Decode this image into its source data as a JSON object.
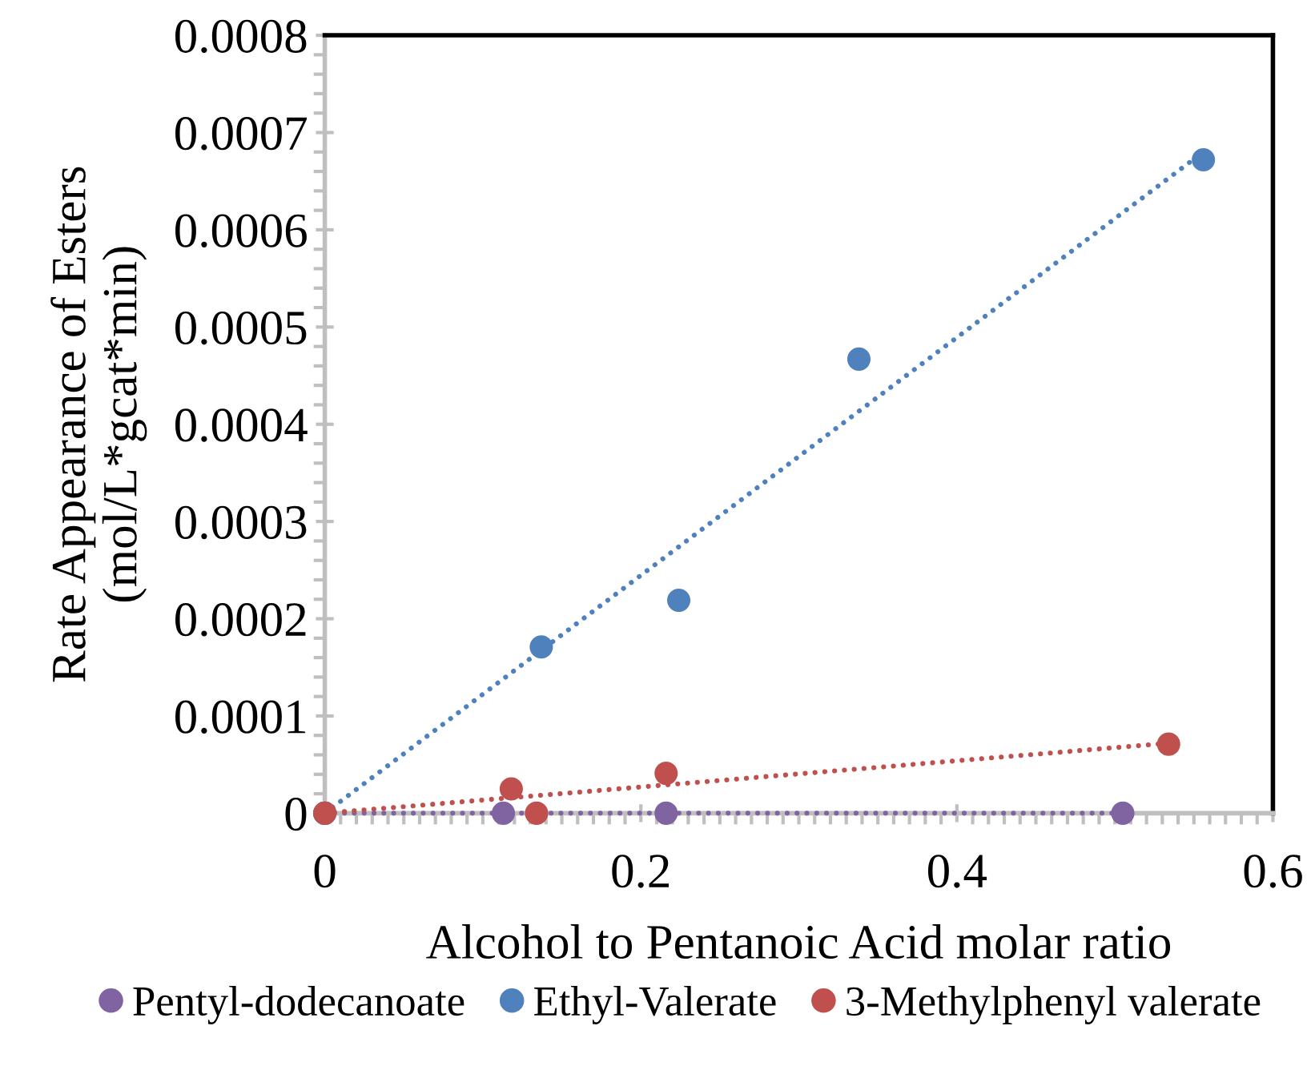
{
  "chart_data": {
    "type": "scatter",
    "xlabel": "Alcohol to Pentanoic Acid molar ratio",
    "ylabel": "Rate Appearance of Esters\n(mol/L*gcat*min)",
    "xlim": [
      0,
      0.6
    ],
    "xticks": [
      0,
      0.2,
      0.4,
      0.6
    ],
    "ylim": [
      0,
      0.0008
    ],
    "yticks": [
      0,
      0.0001,
      0.0002,
      0.0003,
      0.0004,
      0.0005,
      0.0006,
      0.0007,
      0.0008
    ],
    "grid": false,
    "legend": "bottom",
    "marker": "circle",
    "series": [
      {
        "name": "Pentyl-dodecanoate",
        "color": "#8064a2",
        "x": [
          0,
          0.113,
          0.216,
          0.505
        ],
        "values": [
          0,
          0,
          0,
          0
        ]
      },
      {
        "name": "Ethyl-Valerate",
        "color": "#4f81bd",
        "x": [
          0,
          0.137,
          0.224,
          0.338,
          0.556
        ],
        "values": [
          0,
          0.000171,
          0.000219,
          0.000467,
          0.000672
        ]
      },
      {
        "name": "3-Methylphenyl valerate",
        "color": "#c0504d",
        "x": [
          0,
          0.118,
          0.134,
          0.216,
          0.534
        ],
        "values": [
          0,
          2.5e-05,
          0,
          4.1e-05,
          7.1e-05
        ]
      },
      {
        "type": "line",
        "marker": "none",
        "line_style": "dotted",
        "color": "#8064a2",
        "x": [
          0,
          0.505
        ],
        "values": [
          0,
          0
        ]
      },
      {
        "type": "line",
        "marker": "none",
        "line_style": "dotted",
        "color": "#4f81bd",
        "x": [
          0,
          0.556
        ],
        "values": [
          0,
          0.00068
        ]
      },
      {
        "type": "line",
        "marker": "none",
        "line_style": "dotted",
        "color": "#c0504d",
        "x": [
          0,
          0.534
        ],
        "values": [
          0,
          7.2e-05
        ]
      }
    ]
  }
}
